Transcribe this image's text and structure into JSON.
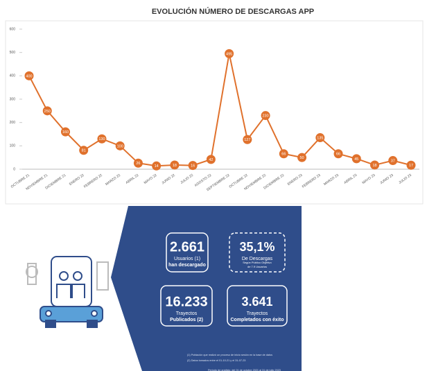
{
  "chart_data": {
    "type": "line",
    "title": "EVOLUCIÓN NÚMERO DE DESCARGAS APP",
    "categories": [
      "OCTUBRE 21",
      "NOVIEMBRE 21",
      "DICIEMBRE 21",
      "ENERO 22",
      "FEBRERO 22",
      "MARZO 22",
      "ABRIL 22",
      "MAYO 22",
      "JUNIO 22",
      "JULIO 22",
      "AGOSTO 22",
      "SEPTIEMBRE 22",
      "OCTUBRE 22",
      "NOVIEMBRE 22",
      "DICIEMBRE 22",
      "ENERO 23",
      "FEBRERO 23",
      "MARZO 23",
      "ABRIL 23",
      "MAYO 23",
      "JUNIO 23",
      "JULIO 23"
    ],
    "series": [
      {
        "name": "Descargas",
        "color": "#e0712c",
        "values": [
          400,
          250,
          160,
          81,
          130,
          100,
          26,
          14,
          18,
          16,
          42,
          495,
          127,
          230,
          66,
          50,
          135,
          66,
          45,
          18,
          37,
          17
        ]
      }
    ],
    "ylim": [
      0,
      600
    ],
    "yticks": [
      0,
      100,
      200,
      300,
      400,
      500,
      600
    ],
    "grid": false
  },
  "infographic": {
    "stats": [
      {
        "value": "2.661",
        "lines": [
          "Usuarios (1)",
          "han descargado"
        ]
      },
      {
        "value": "35,1%",
        "lines": [
          "De Descargas",
          "Según Público Objetivo",
          "de 7.9 Usuarios"
        ]
      },
      {
        "value": "16.233",
        "lines": [
          "Trayectos",
          "Publicados (2)"
        ]
      },
      {
        "value": "3.641",
        "lines": [
          "Trayectos",
          "Completados con éxito"
        ]
      }
    ],
    "notes": [
      "(1) Población que realizó un proceso de inicio sesión en la base de datos",
      "(2) Datos tomados entre el 01-10-21 y el 31-07-23",
      "Periodo de análisis: del 01 de octubre 2021 al 31 de julio 2023"
    ]
  }
}
